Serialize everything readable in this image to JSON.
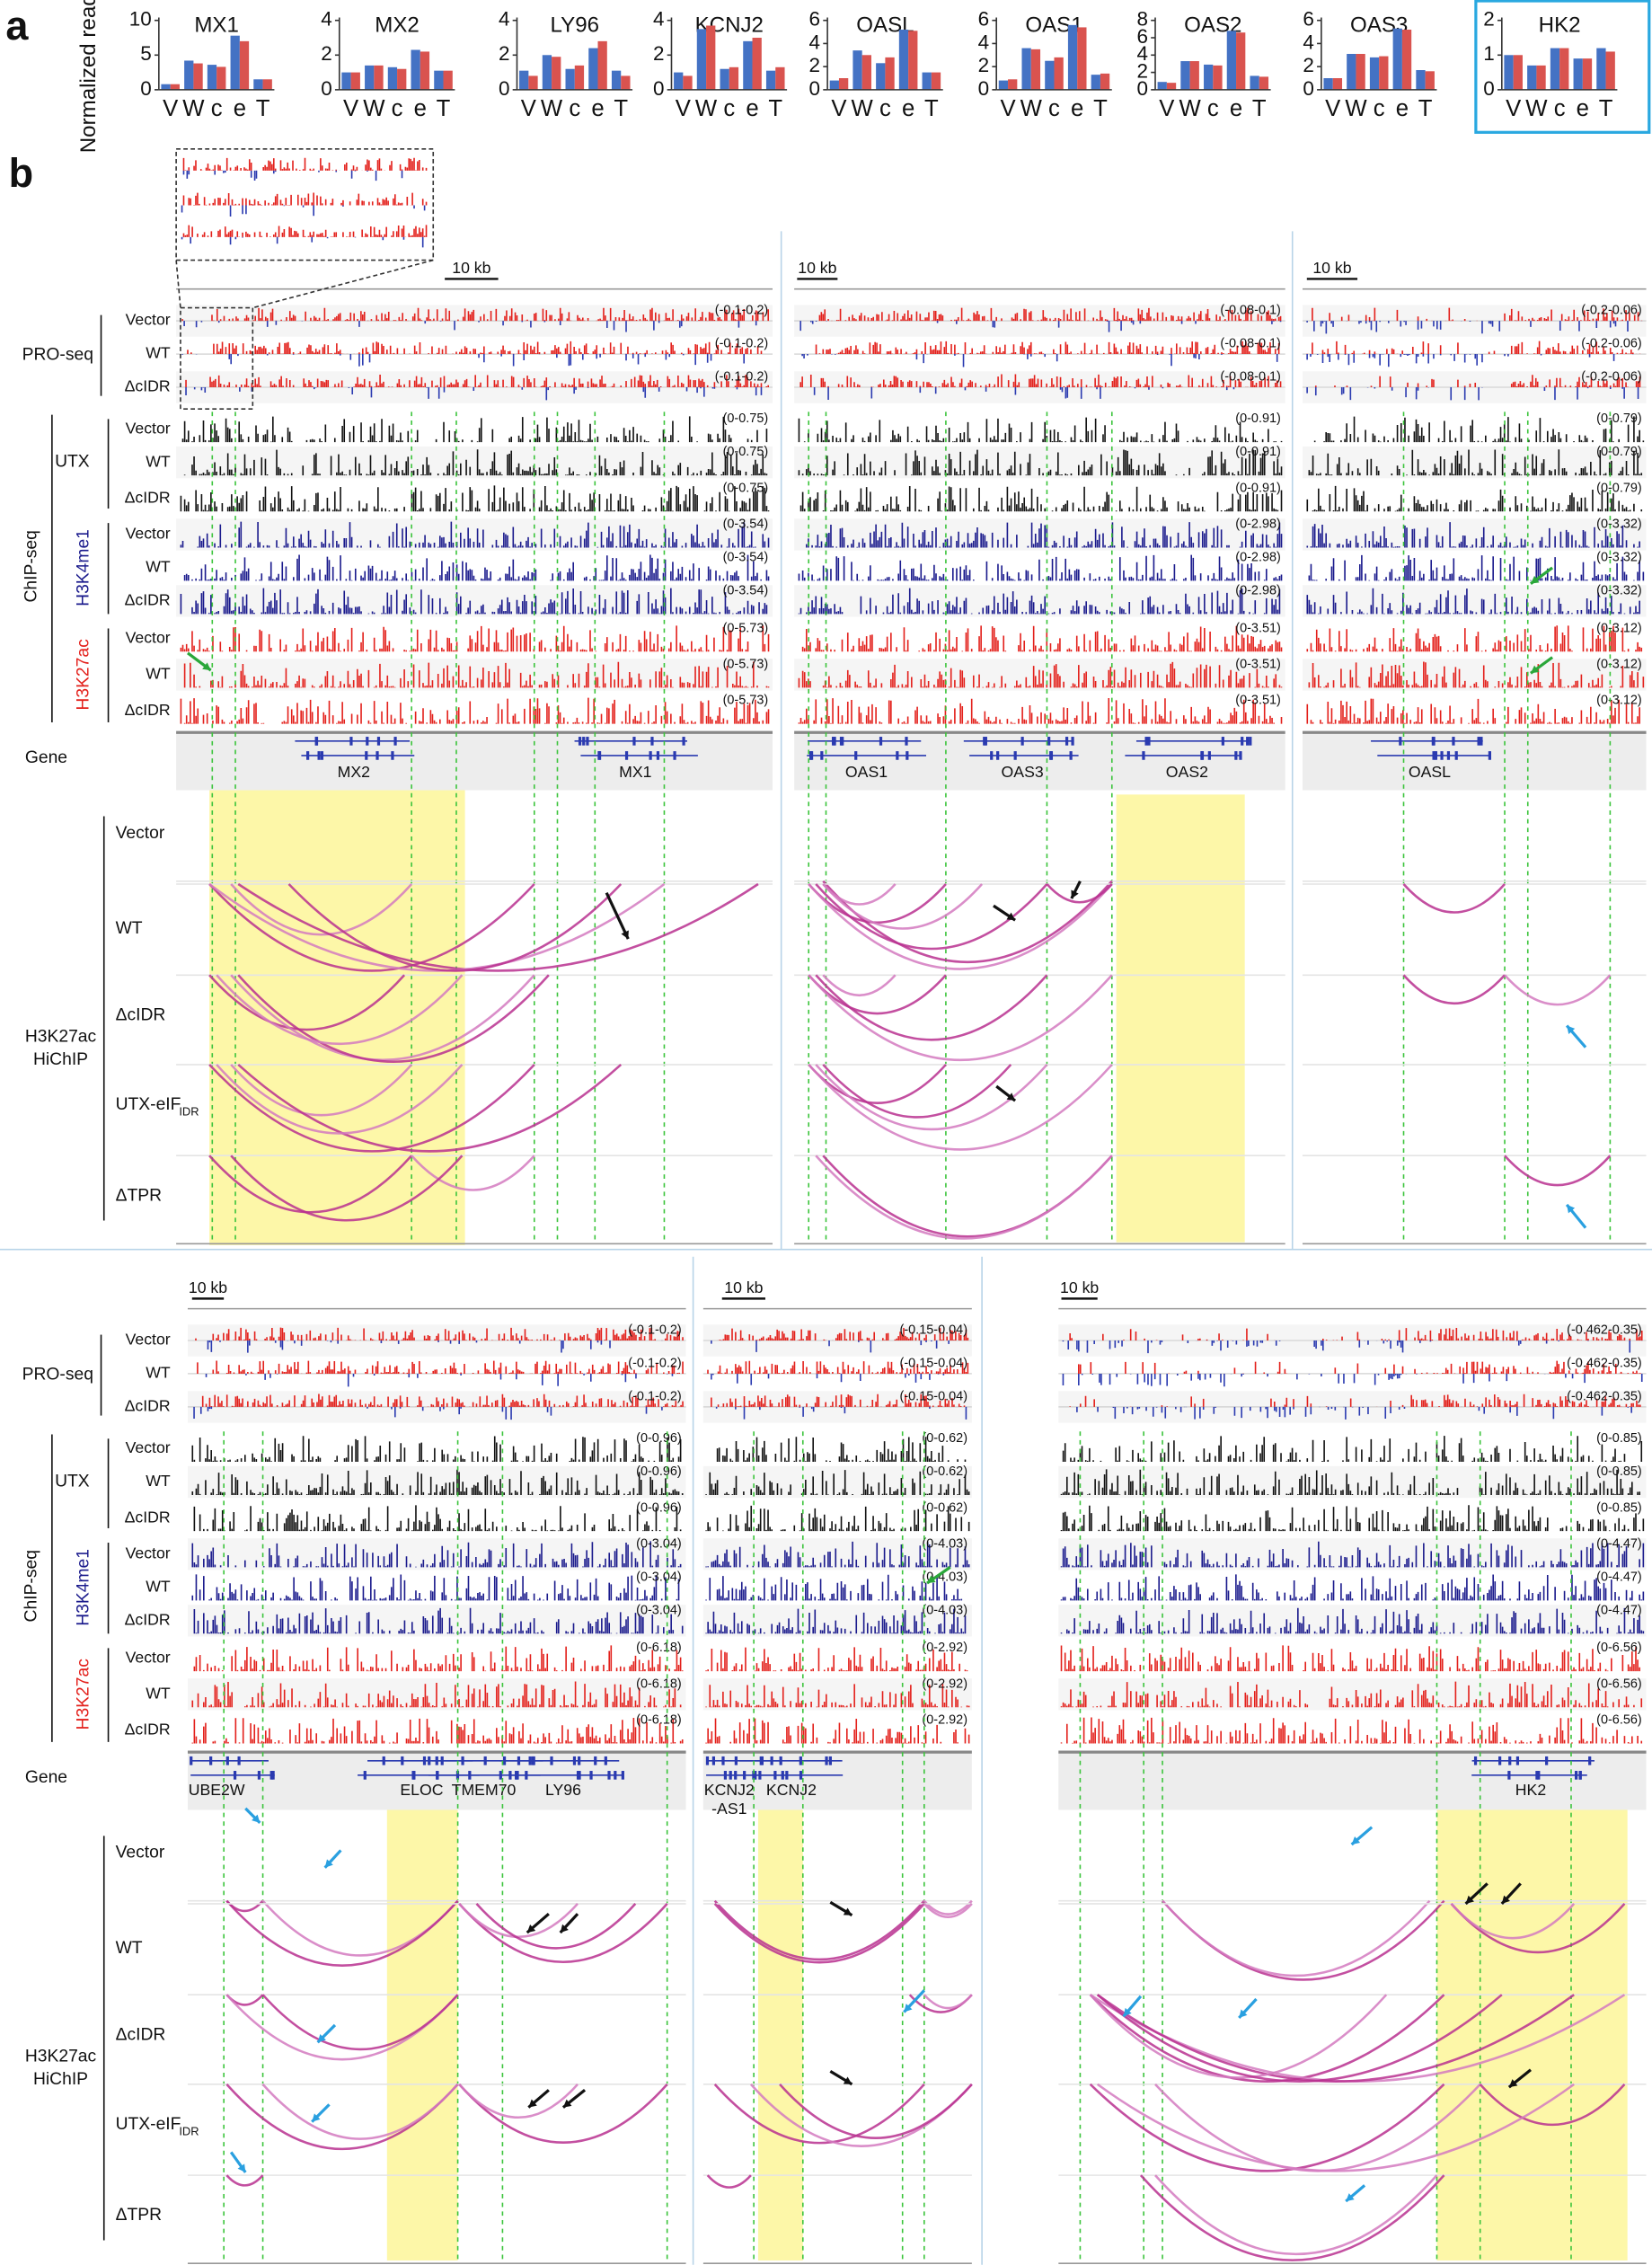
{
  "chart_data": [
    {
      "type": "bar",
      "title": "MX1",
      "y_label": "Normalized reads",
      "categories": [
        "V",
        "W",
        "c",
        "e",
        "T"
      ],
      "series": [
        {
          "color": "#4472c4",
          "values": [
            0.8,
            4.2,
            3.6,
            7.8,
            1.5
          ]
        },
        {
          "color": "#d9534f",
          "values": [
            0.8,
            3.8,
            3.3,
            7.0,
            1.5
          ]
        }
      ],
      "ylim": [
        0,
        10
      ],
      "yticks": [
        0,
        5,
        10
      ]
    },
    {
      "type": "bar",
      "title": "MX2",
      "categories": [
        "V",
        "W",
        "c",
        "e",
        "T"
      ],
      "series": [
        {
          "color": "#4472c4",
          "values": [
            1.0,
            1.4,
            1.3,
            2.3,
            1.1
          ]
        },
        {
          "color": "#d9534f",
          "values": [
            1.0,
            1.4,
            1.2,
            2.2,
            1.1
          ]
        }
      ],
      "ylim": [
        0,
        4
      ],
      "yticks": [
        0,
        2,
        4
      ]
    },
    {
      "type": "bar",
      "title": "LY96",
      "categories": [
        "V",
        "W",
        "c",
        "e",
        "T"
      ],
      "series": [
        {
          "color": "#4472c4",
          "values": [
            1.1,
            2.0,
            1.2,
            2.4,
            1.1
          ]
        },
        {
          "color": "#d9534f",
          "values": [
            0.8,
            1.9,
            1.4,
            2.8,
            0.8
          ]
        }
      ],
      "ylim": [
        0,
        4
      ],
      "yticks": [
        0,
        2,
        4
      ]
    },
    {
      "type": "bar",
      "title": "KCNJ2",
      "categories": [
        "V",
        "W",
        "c",
        "e",
        "T"
      ],
      "series": [
        {
          "color": "#4472c4",
          "values": [
            1.0,
            3.5,
            1.2,
            2.8,
            1.1
          ]
        },
        {
          "color": "#d9534f",
          "values": [
            0.8,
            3.7,
            1.3,
            3.0,
            1.3
          ]
        }
      ],
      "ylim": [
        0,
        4
      ],
      "yticks": [
        0,
        2,
        4
      ]
    },
    {
      "type": "bar",
      "title": "OASL",
      "categories": [
        "V",
        "W",
        "c",
        "e",
        "T"
      ],
      "series": [
        {
          "color": "#4472c4",
          "values": [
            0.8,
            3.4,
            2.3,
            5.2,
            1.5
          ]
        },
        {
          "color": "#d9534f",
          "values": [
            1.0,
            3.0,
            2.8,
            5.1,
            1.5
          ]
        }
      ],
      "ylim": [
        0,
        6
      ],
      "yticks": [
        0,
        2,
        4,
        6
      ]
    },
    {
      "type": "bar",
      "title": "OAS1",
      "categories": [
        "V",
        "W",
        "c",
        "e",
        "T"
      ],
      "series": [
        {
          "color": "#4472c4",
          "values": [
            0.8,
            3.6,
            2.5,
            5.6,
            1.3
          ]
        },
        {
          "color": "#d9534f",
          "values": [
            0.9,
            3.5,
            2.8,
            5.4,
            1.4
          ]
        }
      ],
      "ylim": [
        0,
        6
      ],
      "yticks": [
        0,
        2,
        4,
        6
      ]
    },
    {
      "type": "bar",
      "title": "OAS2",
      "categories": [
        "V",
        "W",
        "c",
        "e",
        "T"
      ],
      "series": [
        {
          "color": "#4472c4",
          "values": [
            0.9,
            3.3,
            2.9,
            6.8,
            1.6
          ]
        },
        {
          "color": "#d9534f",
          "values": [
            0.8,
            3.3,
            2.8,
            6.6,
            1.5
          ]
        }
      ],
      "ylim": [
        0,
        8
      ],
      "yticks": [
        0,
        2,
        4,
        6,
        8
      ]
    },
    {
      "type": "bar",
      "title": "OAS3",
      "categories": [
        "V",
        "W",
        "c",
        "e",
        "T"
      ],
      "series": [
        {
          "color": "#4472c4",
          "values": [
            1.0,
            3.1,
            2.8,
            5.3,
            1.7
          ]
        },
        {
          "color": "#d9534f",
          "values": [
            1.0,
            3.1,
            2.9,
            5.2,
            1.6
          ]
        }
      ],
      "ylim": [
        0,
        6
      ],
      "yticks": [
        0,
        2,
        4,
        6
      ]
    },
    {
      "type": "bar",
      "title": "HK2",
      "categories": [
        "V",
        "W",
        "c",
        "e",
        "T"
      ],
      "series": [
        {
          "color": "#4472c4",
          "values": [
            1.0,
            0.7,
            1.2,
            0.9,
            1.2
          ]
        },
        {
          "color": "#d9534f",
          "values": [
            1.0,
            0.7,
            1.2,
            0.9,
            1.1
          ]
        }
      ],
      "ylim": [
        0,
        2
      ],
      "yticks": [
        0,
        1,
        2
      ]
    }
  ],
  "panel_labels": [
    "a",
    "b"
  ],
  "panel_b": {
    "row_labels": {
      "pro_seq": "PRO-seq",
      "chip_seq": "ChIP-seq",
      "conditions": [
        "Vector",
        "WT",
        "ΔcIDR"
      ],
      "utx": "UTX",
      "h3k4me1": "H3K4me1",
      "h3k27ac": "H3K27ac",
      "gene": "Gene",
      "hichip": [
        "H3K27ac",
        "HiChIP"
      ],
      "utx_eif": "UTX-eIF",
      "idr": "IDR",
      "dtpr": "ΔTPR"
    },
    "panels": [
      {
        "scale": "10 kb",
        "ranges": [
          "(-0.1-0.2)",
          "(-0.1-0.2)",
          "(-0.1-0.2)",
          "(0-0.75)",
          "(0-0.75)",
          "(0-0.75)",
          "(0-3.54)",
          "(0-3.54)",
          "(0-3.54)",
          "(0-5.73)",
          "(0-5.73)",
          "(0-5.73)"
        ],
        "genes": [
          [
            "MX2"
          ],
          [
            "MX1"
          ]
        ]
      },
      {
        "scale": "10 kb",
        "ranges": [
          "(-0.08-0.1)",
          "(-0.08-0.1)",
          "(-0.08-0.1)",
          "(0-0.91)",
          "(0-0.91)",
          "(0-0.91)",
          "(0-2.98)",
          "(0-2.98)",
          "(0-2.98)",
          "(0-3.51)",
          "(0-3.51)",
          "(0-3.51)"
        ],
        "genes": [
          [
            "OAS1"
          ],
          [
            "OAS3"
          ],
          [
            "OAS2"
          ]
        ]
      },
      {
        "scale": "10 kb",
        "ranges": [
          "(-0.2-0.06)",
          "(-0.2-0.06)",
          "(-0.2-0.06)",
          "(0-0.79)",
          "(0-0.79)",
          "(0-0.79)",
          "(0-3.32)",
          "(0-3.32)",
          "(0-3.32)",
          "(0-3.12)",
          "(0-3.12)",
          "(0-3.12)"
        ],
        "genes": [
          [
            "OASL"
          ]
        ]
      },
      {
        "scale": "10 kb",
        "ranges": [
          "(-0.1-0.2)",
          "(-0.1-0.2)",
          "(-0.1-0.2)",
          "(0-0.96)",
          "(0-0.96)",
          "(0-0.96)",
          "(0-3.04)",
          "(0-3.04)",
          "(0-3.04)",
          "(0-6.18)",
          "(0-6.18)",
          "(0-6.18)"
        ],
        "genes": [
          [
            "UBE2W"
          ],
          [
            "ELOC"
          ],
          [
            "TMEM70"
          ],
          [
            "LY96"
          ]
        ]
      },
      {
        "scale": "10 kb",
        "ranges": [
          "(-0.15-0.04)",
          "(-0.15-0.04)",
          "(-0.15-0.04)",
          "(0-0.62)",
          "(0-0.62)",
          "(0-0.62)",
          "(0-4.03)",
          "(0-4.03)",
          "(0-4.03)",
          "(0-2.92)",
          "(0-2.92)",
          "(0-2.92)"
        ],
        "genes": [
          [
            "KCNJ2",
            "-AS1"
          ],
          [
            "KCNJ2"
          ]
        ]
      },
      {
        "scale": "10 kb",
        "ranges": [
          "(-0.462-0.35)",
          "(-0.462-0.35)",
          "(-0.462-0.35)",
          "(0-0.85)",
          "(0-0.85)",
          "(0-0.85)",
          "(0-4.47)",
          "(0-4.47)",
          "(0-4.47)",
          "(0-6.56)",
          "(0-6.56)",
          "(0-6.56)"
        ],
        "genes": [
          [
            "HK2"
          ]
        ]
      }
    ]
  }
}
